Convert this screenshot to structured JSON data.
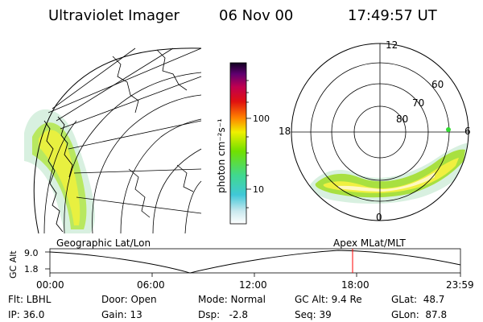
{
  "header": {
    "title": "Ultraviolet Imager",
    "date": "06 Nov 00",
    "time": "17:49:57 UT"
  },
  "colorbar": {
    "unit_label": "photon cm⁻²s⁻¹",
    "ticks": [
      "100",
      "10"
    ],
    "scale": "log"
  },
  "polar_plot": {
    "mlt_labels": [
      "12",
      "18",
      "6",
      "0"
    ],
    "lat_labels": [
      "60",
      "70",
      "80"
    ]
  },
  "bottom_labels": {
    "left": "Geographic Lat/Lon",
    "right": "Apex MLat/MLT"
  },
  "altitude_plot": {
    "ylabel": "GC Alt",
    "y_ticks": [
      "9.0",
      "1.8"
    ],
    "x_ticks": [
      "00:00",
      "06:00",
      "12:00",
      "18:00",
      "23:59"
    ],
    "current_time": "17:49:57"
  },
  "info": {
    "filter": "Flt: LBHL",
    "ip": "IP: 36.0",
    "door": "Door: Open",
    "gain": "Gain: 13",
    "mode": "Mode: Normal",
    "dsp": "Dsp:   -2.8",
    "gc_alt": "GC Alt: 9.4 Re",
    "seq": "Seq: 39",
    "glat": "GLat:  48.7",
    "glon": "GLon:  87.8"
  },
  "colors": {
    "accent_red": "#ff0000",
    "green_dot": "#33dd33"
  }
}
